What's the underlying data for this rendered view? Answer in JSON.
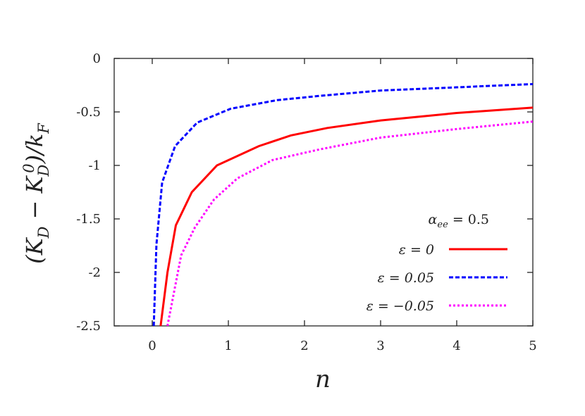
{
  "chart_data": {
    "type": "line",
    "xlabel": "n",
    "ylabel_parts": [
      [
        "(K",
        ""
      ],
      [
        "D",
        "sub"
      ],
      [
        " − K",
        ""
      ],
      [
        "D",
        "sub"
      ],
      [
        "0",
        "sup"
      ],
      [
        ")/k",
        ""
      ],
      [
        "F",
        "sub"
      ]
    ],
    "xlim": [
      -0.5,
      5
    ],
    "ylim": [
      -2.5,
      0
    ],
    "xticks": [
      "0",
      "1",
      "2",
      "3",
      "4",
      "5"
    ],
    "xtick_values": [
      0,
      1,
      2,
      3,
      4,
      5
    ],
    "yticks": [
      "0",
      "-0.5",
      "-1",
      "-1.5",
      "-2",
      "-2.5"
    ],
    "ytick_values": [
      0,
      -0.5,
      -1,
      -1.5,
      -2,
      -2.5
    ],
    "grid": false,
    "legend": {
      "placement": "bottom-right",
      "title_symbol": "α",
      "title_sub": "ee",
      "title_rest": " = 0.5"
    },
    "series": [
      {
        "name": "ε = 0",
        "color": "#ff0000",
        "style": "solid",
        "x": [
          0.11,
          0.2,
          0.31,
          0.52,
          0.85,
          1.4,
          1.82,
          2.3,
          3,
          4,
          5
        ],
        "y": [
          -2.5,
          -2.0,
          -1.56,
          -1.25,
          -1.0,
          -0.82,
          -0.72,
          -0.65,
          -0.58,
          -0.51,
          -0.46
        ]
      },
      {
        "name": "ε = 0.05",
        "color": "#0000ff",
        "style": "dashed",
        "x": [
          0.02,
          0.055,
          0.13,
          0.3,
          0.59,
          1.03,
          1.64,
          2.2,
          3,
          4,
          5
        ],
        "y": [
          -2.5,
          -1.74,
          -1.16,
          -0.82,
          -0.6,
          -0.47,
          -0.39,
          -0.35,
          -0.3,
          -0.27,
          -0.24
        ]
      },
      {
        "name": "ε = −0.05",
        "color": "#ff00ff",
        "style": "dotted",
        "x": [
          0.2,
          0.38,
          0.56,
          0.81,
          1.12,
          1.58,
          2.2,
          3,
          4,
          5
        ],
        "y": [
          -2.5,
          -1.84,
          -1.58,
          -1.32,
          -1.12,
          -0.95,
          -0.85,
          -0.74,
          -0.66,
          -0.59
        ]
      }
    ]
  }
}
